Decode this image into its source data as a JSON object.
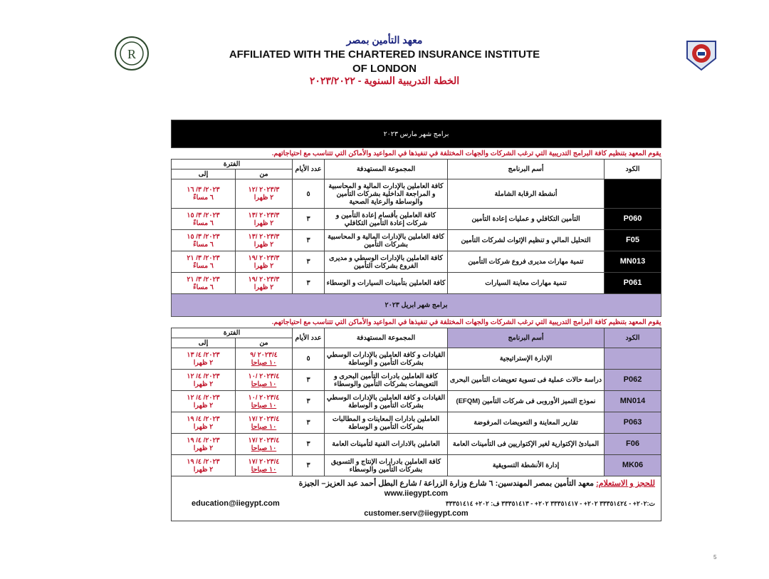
{
  "header": {
    "institute_ar": "معهد التأمين بمصر",
    "affiliation_line1": "AFFILIATED WITH THE CHARTERED INSURANCE INSTITUTE",
    "affiliation_line2": "OF LONDON",
    "plan_title": "الخطة التدريبية السنوية - ٢٠٢٣/٢٠٢٢",
    "left_logo": "Q-R-quality-seal",
    "right_logo": "institute-crest-logo"
  },
  "columns": {
    "code": "الكود",
    "program": "أسم البرنامج",
    "target": "المجموعة المستهدفة",
    "days": "عدد الأيام",
    "period": "الفترة",
    "from": "من",
    "to": "إلى"
  },
  "notice": "يقوم المعهد بتنظيم كافة البرامج التدريبية التي ترغب الشركات والجهات المختلفة في تنفيذها في المواعيد والأماكن التي تتناسب مع احتياجاتهم.",
  "march": {
    "title": "برامج شهر مارس ٢٠٢٣",
    "rows": [
      {
        "code": "",
        "program": "أنشطة الرقابة الشاملة",
        "target": "كافة العاملين بالإدارت المالية و المحاسبية و المراجعة الداخلية بشركات التأمين والوساطة والرعاية الصحية",
        "days": "٥",
        "from_date": "٢٠٢٣/٣ /١٢",
        "from_time": "٢ ظهرا",
        "to_date": "٢٠٢٣/ ٣/ ١٦",
        "to_time": "٦ مساءً"
      },
      {
        "code": "P060",
        "program": "التأمين التكافلي و عمليات إعادة التأمين",
        "target": "كافة العاملين بأقسام إعادة التأمين و شركات إعادة التأمين التكافلي",
        "days": "٣",
        "from_date": "٢٠٢٣/٣ /١٣",
        "from_time": "٢ ظهرا",
        "to_date": "٢٠٢٣/ ٣/ ١٥",
        "to_time": "٦ مساءً"
      },
      {
        "code": "F05",
        "program": "التحليل المالي و تنظيم الإثوات لشركات التأمين",
        "target": "كافة العاملين بالإدارات المالية و المحاسبية بشركات التأمين",
        "days": "٣",
        "from_date": "٢٠٢٣/٣ /١٣",
        "from_time": "٢ ظهرا",
        "to_date": "٢٠٢٣/ ٣/ ١٥",
        "to_time": "٦ مساءً"
      },
      {
        "code": "MN013",
        "program": "تنمية مهارات مديرى فروع شركات التأمين",
        "target": "كافة العاملين بالإدارات الوسطي و مديرى الفروع بشركات التأمين",
        "days": "٣",
        "from_date": "٢٠٢٣/٣ /١٩",
        "from_time": "٢ ظهرا",
        "to_date": "٢٠٢٣/ ٣/ ٢١",
        "to_time": "٦ مساءً"
      },
      {
        "code": "P061",
        "program": "تنمية مهارات معاينة السيارات",
        "target": "كافة العاملين بتأمينات السيارات و الوسطاء",
        "days": "٣",
        "from_date": "٢٠٢٣/٣ /١٩",
        "from_time": "٢ ظهرا",
        "to_date": "٢٠٢٣/ ٣/ ٢١",
        "to_time": "٦ مساءً"
      }
    ]
  },
  "april": {
    "title": "برامج شهر ابريل ٢٠٢٣",
    "rows": [
      {
        "code": "",
        "program": "الإدارة الإستراتيجية",
        "target": "القيادات و كافة العاملين بالإدارات الوسطي بشركات التأمين و الوساطة",
        "days": "٥",
        "from_date": "٢٠٢٣/٤ /٩",
        "from_time": "١٠ صباحا",
        "to_date": "٢٠٢٣/ ٤/ ١٣",
        "to_time": "٢ ظهرا"
      },
      {
        "code": "P062",
        "program": "دراسة حالات عملية فى تسوية تعويضات التأمين البحرى",
        "target": "كافة العاملين بادرات التأمين البحرى و التعويضات بشركات التأمين والوسطاء",
        "days": "٣",
        "from_date": "٢٠٢٣/٤ /١٠",
        "from_time": "١٠ صباحا",
        "to_date": "٢٠٢٣/ ٤/ ١٢",
        "to_time": "٢ ظهرا"
      },
      {
        "code": "MN014",
        "program": "نموذج التميز الأوروبى فى شركات التأمين (EFQM)",
        "target": "القيادات و كافة العاملين بالإدارات الوسطي بشركات التأمين و الوساطة",
        "days": "٣",
        "from_date": "٢٠٢٣/٤ /١٠",
        "from_time": "١٠ صباحا",
        "to_date": "٢٠٢٣/ ٤/ ١٢",
        "to_time": "٢ ظهرا"
      },
      {
        "code": "P063",
        "program": "تقارير المعاينة و التعويضات المرفوضة",
        "target": "العاملين بادارات المعاينات و المطالبات بشركات التأمين و الوساطة",
        "days": "٣",
        "from_date": "٢٠٢٣/٤ /١٧",
        "from_time": "١٠ صباحا",
        "to_date": "٢٠٢٣/ ٤/ ١٩",
        "to_time": "٢ ظهرا"
      },
      {
        "code": "F06",
        "program": "المبادئ الإكتوارية لغير الإكتواريين فى التأمينات العامة",
        "target": "العاملين بالادارات الفنية لتأمينات العامة",
        "days": "٣",
        "from_date": "٢٠٢٣/٤ /١٧",
        "from_time": "١٠ صباحا",
        "to_date": "٢٠٢٣/ ٤/ ١٩",
        "to_time": "٢ ظهرا"
      },
      {
        "code": "MK06",
        "program": "إدارة الأنشطة التسويقية",
        "target": "كافة العاملين بادرارات الإنتاج و التسويق بشركات التأمين والوسطاء",
        "days": "٣",
        "from_date": "٢٠٢٣/٤ /١٧",
        "from_time": "١٠ صباحا",
        "to_date": "٢٠٢٣/ ٤/ ١٩",
        "to_time": "٢ ظهرا"
      }
    ]
  },
  "footer": {
    "booking_label": "للحجز و الاستعلام:",
    "address": "معهد التأمين بمصر المهندسين: ٦ شارع وزارة الزراعة / شارع البطل أحمد عبد العزيز– الجيزة",
    "website": "www.iiegypt.com",
    "phones": "ت:٢٠٢+ - ٣٣٣٥١٤٢٤   ٢٠٢+ - ٣٣٣٥١٤١٧  ٢٠٢+ - ٣٣٣٥١٤١٣   ف: ٢٠٢+ ٣٣٣٥١٤١٤",
    "email1": "education@iiegypt.com",
    "email2": "customer.serv@iiegypt.com"
  },
  "page_number": "5",
  "colors": {
    "accent_red": "#c0152b",
    "purple": "#b4a7d6",
    "navy": "#1a237e"
  }
}
